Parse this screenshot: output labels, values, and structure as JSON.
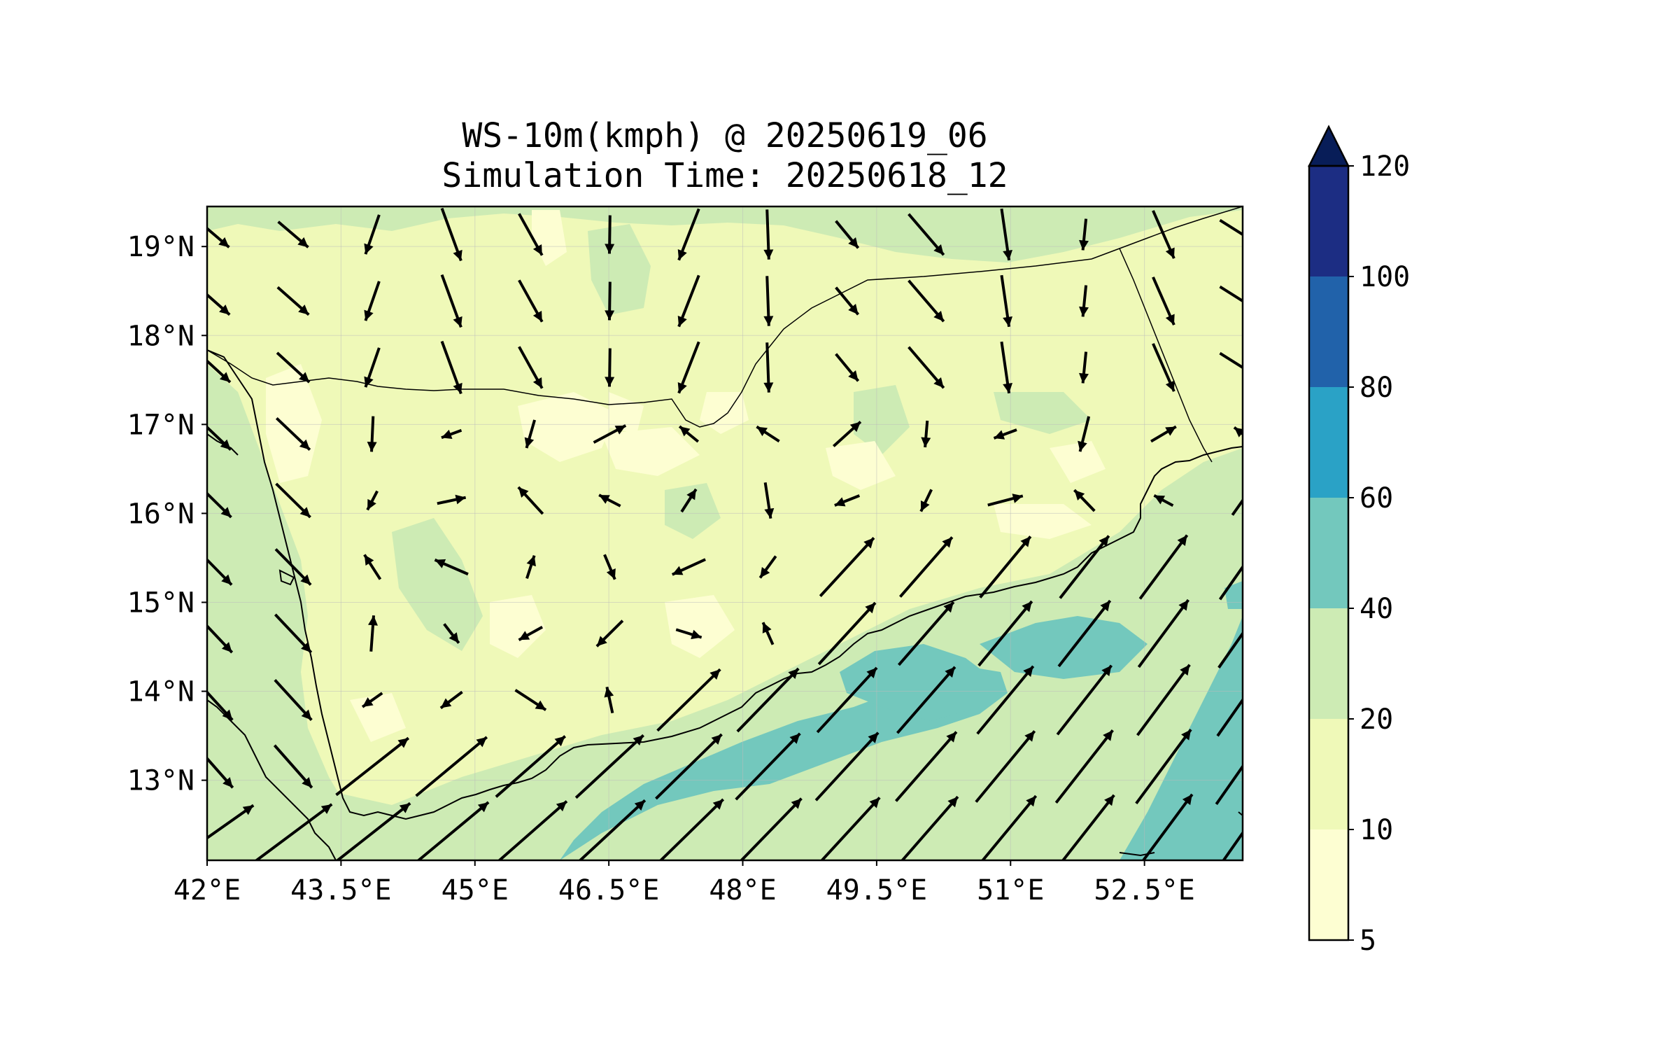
{
  "figure": {
    "title_line_1": "WS-10m(kmph) @ 20250619_06",
    "title_line_2": "Simulation Time: 20250618_12"
  },
  "map": {
    "variable": "10 m wind speed (kmph) with wind direction arrows",
    "x_ticks": [
      "42°E",
      "43.5°E",
      "45°E",
      "46.5°E",
      "48°E",
      "49.5°E",
      "51°E",
      "52.5°E"
    ],
    "x_tick_values": [
      42,
      43.5,
      45,
      46.5,
      48,
      49.5,
      51,
      52.5
    ],
    "y_ticks": [
      "13°N",
      "14°N",
      "15°N",
      "16°N",
      "17°N",
      "18°N",
      "19°N"
    ],
    "y_tick_values": [
      13,
      14,
      15,
      16,
      17,
      18,
      19
    ],
    "lon_range": [
      42,
      53.6
    ],
    "lat_range": [
      12.1,
      19.45
    ]
  },
  "colorbar": {
    "tick_labels": [
      "5",
      "10",
      "20",
      "40",
      "60",
      "80",
      "100",
      "120"
    ],
    "levels": [
      5,
      10,
      20,
      40,
      60,
      80,
      100,
      120
    ],
    "colors": [
      "#fdfed2",
      "#eff9b8",
      "#cdebb4",
      "#73c8bd",
      "#2aa2c6",
      "#2162aa",
      "#1c2d83"
    ],
    "extend_color": "#081d58",
    "extend": "max"
  },
  "styles": {
    "land_base": "#eff9b8",
    "low_wind": "#fdfed2",
    "moderate_wind": "#cdebb4",
    "strong_wind": "#73c8bd",
    "arrow_color": "#000000",
    "border_color": "#000000"
  }
}
